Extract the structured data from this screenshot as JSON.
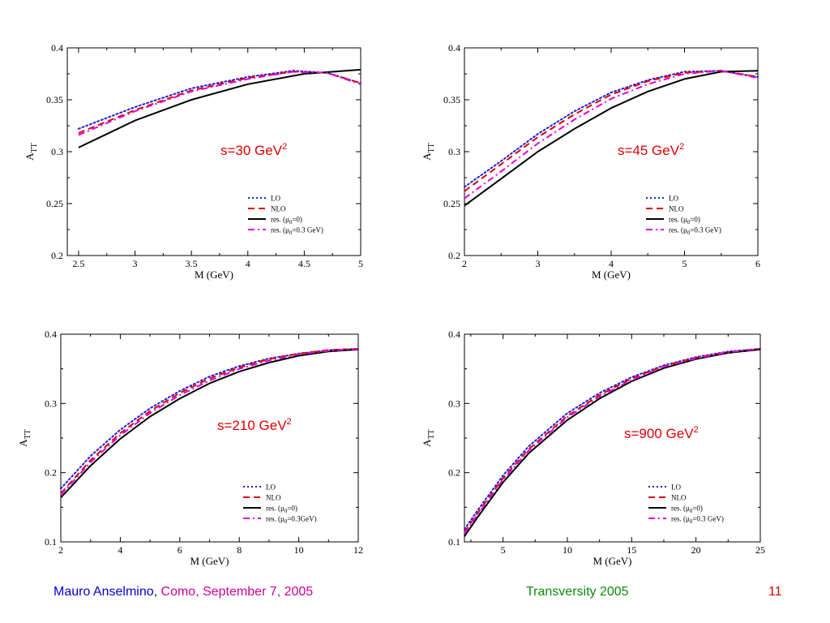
{
  "colors": {
    "LO": "#1f1fd6",
    "NLO": "#e00000",
    "res_mu0_0": "#000000",
    "res_mu0_03": "#e000e0",
    "annotation": "#e00000"
  },
  "chart_data": [
    {
      "type": "line",
      "annotation": {
        "text": "s=30 GeV",
        "sup": "2"
      },
      "xlabel": "M (GeV)",
      "ylabel": "A",
      "ylabel_sub": "TT",
      "xlim": [
        2.4,
        5.0
      ],
      "ylim": [
        0.2,
        0.4
      ],
      "xticks": [
        2.5,
        3,
        3.5,
        4,
        4.5,
        5
      ],
      "xtick_labels": [
        "2.5",
        "3",
        "3.5",
        "4",
        "4.5",
        "5"
      ],
      "yticks": [
        0.2,
        0.25,
        0.3,
        0.35,
        0.4
      ],
      "ytick_labels": [
        "0.2",
        "0.25",
        "0.3",
        "0.35",
        "0.4"
      ],
      "grid": false,
      "legend_position": "bottom-right",
      "series": [
        {
          "name": "LO",
          "legend": "LO",
          "style": "dotted",
          "color_key": "LO",
          "x": [
            2.5,
            3.0,
            3.5,
            4.0,
            4.4,
            4.7,
            5.0
          ],
          "y": [
            0.322,
            0.343,
            0.361,
            0.372,
            0.378,
            0.376,
            0.366
          ]
        },
        {
          "name": "NLO",
          "legend": "NLO",
          "style": "dashed",
          "color_key": "NLO",
          "x": [
            2.5,
            3.0,
            3.5,
            4.0,
            4.4,
            4.7,
            5.0
          ],
          "y": [
            0.318,
            0.34,
            0.359,
            0.371,
            0.377,
            0.376,
            0.366
          ]
        },
        {
          "name": "res. (μ0=0)",
          "legend_main": "res. (μ",
          "legend_sub": "0",
          "legend_tail": "=0)",
          "style": "solid",
          "color_key": "res_mu0_0",
          "x": [
            2.5,
            3.0,
            3.5,
            4.0,
            4.5,
            5.0
          ],
          "y": [
            0.304,
            0.33,
            0.35,
            0.365,
            0.375,
            0.379
          ]
        },
        {
          "name": "res. (μ0=0.3 GeV)",
          "legend_main": "res. (μ",
          "legend_sub": "0",
          "legend_tail": "=0.3 GeV)",
          "style": "dashdot",
          "color_key": "res_mu0_03",
          "x": [
            2.5,
            3.0,
            3.5,
            4.0,
            4.4,
            4.7,
            5.0
          ],
          "y": [
            0.316,
            0.339,
            0.358,
            0.37,
            0.377,
            0.376,
            0.365
          ]
        }
      ]
    },
    {
      "type": "line",
      "annotation": {
        "text": "s=45 GeV",
        "sup": "2"
      },
      "xlabel": "M (GeV)",
      "ylabel": "A",
      "ylabel_sub": "TT",
      "xlim": [
        2,
        6
      ],
      "ylim": [
        0.2,
        0.4
      ],
      "xticks": [
        2,
        3,
        4,
        5,
        6
      ],
      "xtick_labels": [
        "2",
        "3",
        "4",
        "5",
        "6"
      ],
      "yticks": [
        0.2,
        0.25,
        0.3,
        0.35,
        0.4
      ],
      "ytick_labels": [
        "0.2",
        "0.25",
        "0.3",
        "0.35",
        "0.4"
      ],
      "grid": false,
      "legend_position": "bottom-right",
      "series": [
        {
          "name": "LO",
          "legend": "LO",
          "style": "dotted",
          "color_key": "LO",
          "x": [
            2,
            2.5,
            3,
            3.5,
            4,
            4.5,
            5,
            5.5,
            6
          ],
          "y": [
            0.266,
            0.291,
            0.317,
            0.339,
            0.357,
            0.369,
            0.377,
            0.378,
            0.372
          ]
        },
        {
          "name": "NLO",
          "legend": "NLO",
          "style": "dashed",
          "color_key": "NLO",
          "x": [
            2,
            2.5,
            3,
            3.5,
            4,
            4.5,
            5,
            5.5,
            6
          ],
          "y": [
            0.262,
            0.288,
            0.314,
            0.336,
            0.355,
            0.368,
            0.376,
            0.378,
            0.372
          ]
        },
        {
          "name": "res. (μ0=0)",
          "legend_main": "res. (μ",
          "legend_sub": "0",
          "legend_tail": "=0)",
          "style": "solid",
          "color_key": "res_mu0_0",
          "x": [
            2,
            2.5,
            3,
            3.5,
            4,
            4.5,
            5,
            5.5,
            6
          ],
          "y": [
            0.248,
            0.274,
            0.3,
            0.322,
            0.342,
            0.358,
            0.37,
            0.377,
            0.378
          ]
        },
        {
          "name": "res. (μ0=0.3 GeV)",
          "legend_main": "res. (μ",
          "legend_sub": "0",
          "legend_tail": "=0.3 GeV)",
          "style": "dashdot",
          "color_key": "res_mu0_03",
          "x": [
            2,
            2.5,
            3,
            3.5,
            4,
            4.5,
            5,
            5.5,
            6
          ],
          "y": [
            0.255,
            0.281,
            0.308,
            0.331,
            0.351,
            0.365,
            0.375,
            0.378,
            0.371
          ]
        }
      ]
    },
    {
      "type": "line",
      "annotation": {
        "text": "s=210 GeV",
        "sup": "2"
      },
      "xlabel": "M (GeV)",
      "ylabel": "A",
      "ylabel_sub": "TT",
      "xlim": [
        2,
        12
      ],
      "ylim": [
        0.1,
        0.4
      ],
      "xticks": [
        2,
        4,
        6,
        8,
        10,
        12
      ],
      "xtick_labels": [
        "2",
        "4",
        "6",
        "8",
        "10",
        "12"
      ],
      "yticks": [
        0.1,
        0.2,
        0.3,
        0.4
      ],
      "ytick_labels": [
        "0.1",
        "0.2",
        "0.3",
        "0.4"
      ],
      "grid": false,
      "legend_position": "bottom-right",
      "series": [
        {
          "name": "LO",
          "legend": "LO",
          "style": "dotted",
          "color_key": "LO",
          "x": [
            2,
            3,
            4,
            5,
            6,
            7,
            8,
            9,
            10,
            11,
            12
          ],
          "y": [
            0.177,
            0.224,
            0.262,
            0.293,
            0.318,
            0.339,
            0.354,
            0.365,
            0.372,
            0.377,
            0.379
          ]
        },
        {
          "name": "NLO",
          "legend": "NLO",
          "style": "dashed",
          "color_key": "NLO",
          "x": [
            2,
            3,
            4,
            5,
            6,
            7,
            8,
            9,
            10,
            11,
            12
          ],
          "y": [
            0.17,
            0.218,
            0.257,
            0.289,
            0.315,
            0.336,
            0.352,
            0.364,
            0.372,
            0.377,
            0.379
          ]
        },
        {
          "name": "res. (μ0=0)",
          "legend_main": "res. (μ",
          "legend_sub": "0",
          "legend_tail": "=0)",
          "style": "solid",
          "color_key": "res_mu0_0",
          "x": [
            2,
            3,
            4,
            5,
            6,
            7,
            8,
            9,
            10,
            11,
            12
          ],
          "y": [
            0.164,
            0.21,
            0.249,
            0.281,
            0.307,
            0.329,
            0.346,
            0.359,
            0.369,
            0.375,
            0.378
          ]
        },
        {
          "name": "res. (μ0=0.3GeV)",
          "legend_main": "res. (μ",
          "legend_sub": "0",
          "legend_tail": "=0.3GeV)",
          "style": "dashdot",
          "color_key": "res_mu0_03",
          "x": [
            2,
            3,
            4,
            5,
            6,
            7,
            8,
            9,
            10,
            11,
            12
          ],
          "y": [
            0.168,
            0.215,
            0.254,
            0.286,
            0.312,
            0.333,
            0.35,
            0.362,
            0.371,
            0.376,
            0.379
          ]
        }
      ]
    },
    {
      "type": "line",
      "annotation": {
        "text": "s=900 GeV",
        "sup": "2"
      },
      "xlabel": "M (GeV)",
      "ylabel": "A",
      "ylabel_sub": "TT",
      "xlim": [
        2,
        25
      ],
      "ylim": [
        0.1,
        0.4
      ],
      "xticks": [
        5,
        10,
        15,
        20,
        25
      ],
      "xtick_labels": [
        "5",
        "10",
        "15",
        "20",
        "25"
      ],
      "yticks": [
        0.1,
        0.2,
        0.3,
        0.4
      ],
      "ytick_labels": [
        "0.1",
        "0.2",
        "0.3",
        "0.4"
      ],
      "grid": false,
      "legend_position": "bottom-right",
      "series": [
        {
          "name": "LO",
          "legend": "LO",
          "style": "dotted",
          "color_key": "LO",
          "x": [
            2,
            3,
            5,
            7,
            10,
            12.5,
            15,
            17.5,
            20,
            22.5,
            25
          ],
          "y": [
            0.118,
            0.145,
            0.196,
            0.238,
            0.286,
            0.315,
            0.338,
            0.355,
            0.367,
            0.375,
            0.379
          ]
        },
        {
          "name": "NLO",
          "legend": "NLO",
          "style": "dashed",
          "color_key": "NLO",
          "x": [
            2,
            3,
            5,
            7,
            10,
            12.5,
            15,
            17.5,
            20,
            22.5,
            25
          ],
          "y": [
            0.114,
            0.141,
            0.192,
            0.234,
            0.282,
            0.312,
            0.336,
            0.354,
            0.366,
            0.374,
            0.379
          ]
        },
        {
          "name": "res. (μ0=0)",
          "legend_main": "res. (μ",
          "legend_sub": "0",
          "legend_tail": "=0)",
          "style": "solid",
          "color_key": "res_mu0_0",
          "x": [
            2,
            3,
            5,
            7,
            10,
            12.5,
            15,
            17.5,
            20,
            22.5,
            25
          ],
          "y": [
            0.108,
            0.135,
            0.186,
            0.228,
            0.276,
            0.307,
            0.332,
            0.351,
            0.364,
            0.373,
            0.378
          ]
        },
        {
          "name": "res. (μ0=0.3 GeV)",
          "legend_main": "res. (μ",
          "legend_sub": "0",
          "legend_tail": "=0.3 GeV)",
          "style": "dashdot",
          "color_key": "res_mu0_03",
          "x": [
            2,
            3,
            5,
            7,
            10,
            12.5,
            15,
            17.5,
            20,
            22.5,
            25
          ],
          "y": [
            0.112,
            0.139,
            0.19,
            0.232,
            0.28,
            0.31,
            0.334,
            0.353,
            0.365,
            0.374,
            0.379
          ]
        }
      ]
    }
  ],
  "footer": {
    "author": "Mauro Anselmino,",
    "event": " Como, September 7, 2005",
    "conference": "Transversity 2005",
    "page": "11"
  }
}
